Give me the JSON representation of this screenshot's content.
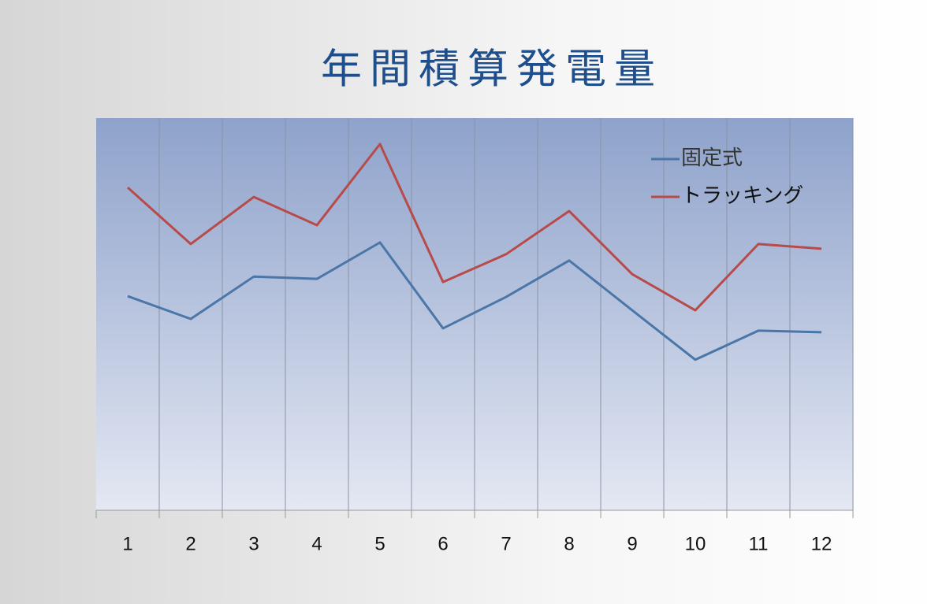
{
  "chart_data": {
    "type": "line",
    "title": "年間積算発電量",
    "categories": [
      "1",
      "2",
      "3",
      "4",
      "5",
      "6",
      "7",
      "8",
      "9",
      "10",
      "11",
      "12"
    ],
    "series": [
      {
        "name": "固定式",
        "color": "#4a76a8",
        "values": [
          54.6,
          48.8,
          59.6,
          59.0,
          68.3,
          46.4,
          54.4,
          63.7,
          51.0,
          38.4,
          45.8,
          45.4
        ]
      },
      {
        "name": "トラッキング",
        "color": "#b84a4a",
        "values": [
          82.3,
          67.9,
          79.9,
          72.7,
          93.4,
          58.2,
          65.3,
          76.3,
          60.2,
          51.0,
          67.9,
          66.7
        ]
      }
    ],
    "ylim": [
      0,
      100
    ],
    "legend": "upper right"
  }
}
